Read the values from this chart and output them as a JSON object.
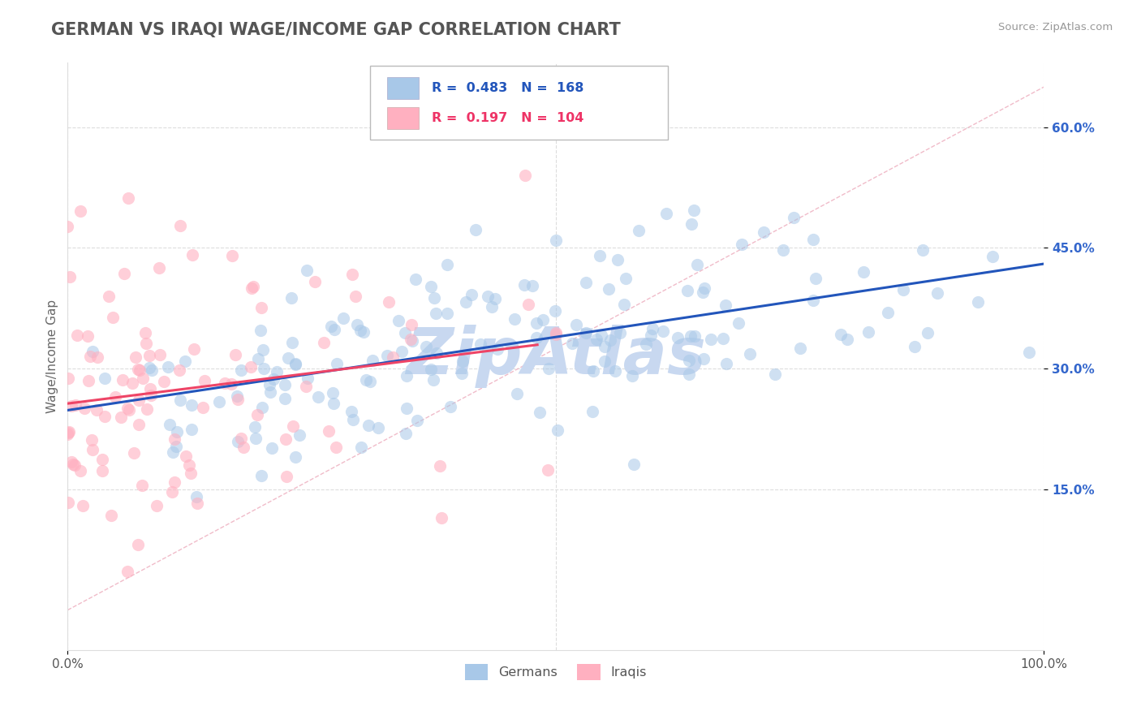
{
  "title": "GERMAN VS IRAQI WAGE/INCOME GAP CORRELATION CHART",
  "source_text": "Source: ZipAtlas.com",
  "ylabel": "Wage/Income Gap",
  "xlim": [
    0.0,
    1.0
  ],
  "ylim": [
    -0.05,
    0.68
  ],
  "yticks": [
    0.15,
    0.3,
    0.45,
    0.6
  ],
  "ytick_labels": [
    "15.0%",
    "30.0%",
    "45.0%",
    "60.0%"
  ],
  "german_color": "#A8C8E8",
  "iraqi_color": "#FFB0C0",
  "german_line_color": "#2255BB",
  "iraqi_line_color": "#EE4466",
  "ref_line_color": "#EEB0C0",
  "legend_text_color_blue": "#2255BB",
  "legend_text_color_pink": "#EE3366",
  "ytick_color": "#3366CC",
  "watermark": "ZipAtlas",
  "watermark_color": "#C8D8F0",
  "background_color": "#FFFFFF",
  "grid_color": "#DDDDDD",
  "title_color": "#555555",
  "title_fontsize": 15,
  "axis_label_fontsize": 11,
  "tick_fontsize": 11,
  "seed": 42,
  "n_german": 168,
  "n_iraqi": 104
}
